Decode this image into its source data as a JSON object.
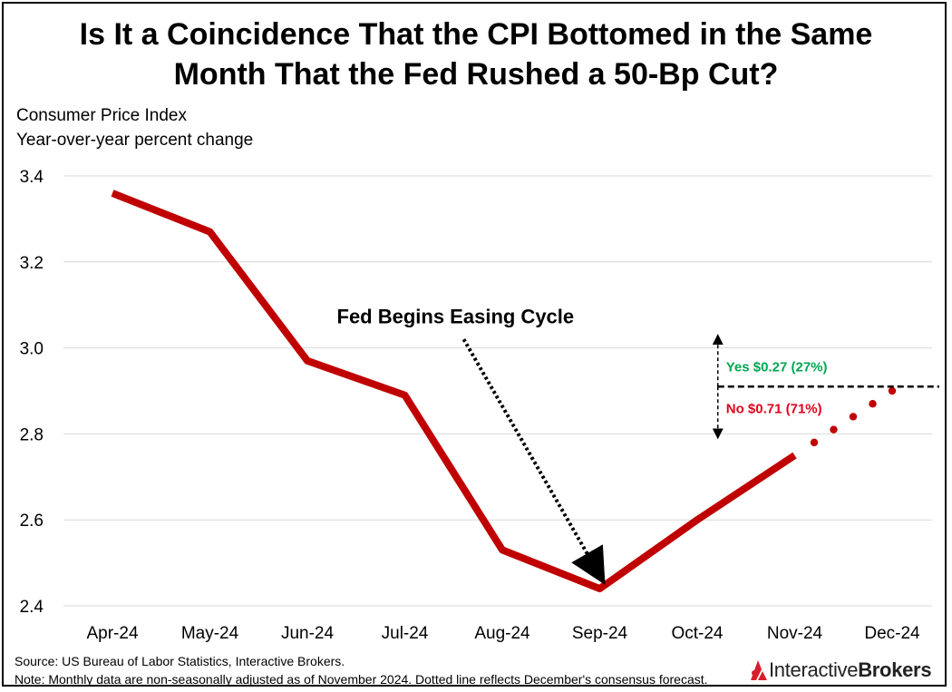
{
  "title_line1": "Is It a Coincidence That the CPI Bottomed in the Same",
  "title_line2": "Month That the Fed Rushed a 50-Bp Cut?",
  "subtitle_line1": "Consumer Price Index",
  "subtitle_line2": "Year-over-year percent change",
  "source": "Source: US Bureau of Labor Statistics, Interactive Brokers.",
  "note": "Note: Monthly data are non-seasonally adjusted as of November 2024. Dotted line reflects December's consensus forecast.",
  "logo": {
    "part1": "Interactive",
    "part2": "Brokers",
    "icon": "ib-logo-icon"
  },
  "colors": {
    "series": "#c00000",
    "yes": "#00a651",
    "no": "#e0001b",
    "grid": "#d9d9d9"
  },
  "chart_data": {
    "type": "line",
    "categories": [
      "Apr-24",
      "May-24",
      "Jun-24",
      "Jul-24",
      "Aug-24",
      "Sep-24",
      "Oct-24",
      "Nov-24",
      "Dec-24"
    ],
    "series": [
      {
        "name": "CPI YoY (actual)",
        "style": "solid",
        "values": [
          3.36,
          3.27,
          2.97,
          2.89,
          2.53,
          2.44,
          2.6,
          2.75,
          null
        ]
      },
      {
        "name": "CPI YoY (December consensus forecast)",
        "style": "dotted",
        "values": [
          null,
          null,
          null,
          null,
          null,
          null,
          null,
          2.75,
          2.9
        ]
      }
    ],
    "ylim": [
      2.4,
      3.4
    ],
    "yticks": [
      2.4,
      2.6,
      2.8,
      3.0,
      3.2,
      3.4
    ],
    "ytick_labels": [
      "2.4",
      "2.6",
      "2.8",
      "3.0",
      "3.2",
      "3.4"
    ],
    "grid": true,
    "annotations": {
      "fed": {
        "text": "Fed Begins Easing Cycle",
        "target_category": "Sep-24",
        "target_value": 2.44
      },
      "yes": {
        "text": "Yes $0.27 (27%)"
      },
      "no": {
        "text": "No $0.71 (71%)"
      },
      "threshold": {
        "value": 2.91,
        "upper": 3.02,
        "lower": 2.8
      }
    }
  }
}
